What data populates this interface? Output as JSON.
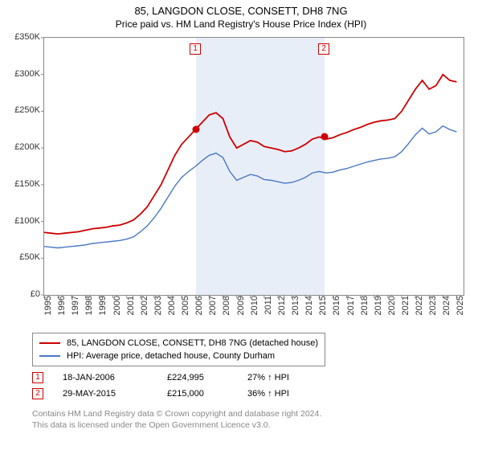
{
  "title": "85, LANGDON CLOSE, CONSETT, DH8 7NG",
  "subtitle": "Price paid vs. HM Land Registry's House Price Index (HPI)",
  "chart": {
    "type": "line",
    "background_color": "#ffffff",
    "shade_color": "#e8eef8",
    "border_color": "#888888",
    "x_years": [
      1995,
      1996,
      1997,
      1998,
      1999,
      2000,
      2001,
      2002,
      2003,
      2004,
      2005,
      2006,
      2007,
      2008,
      2009,
      2010,
      2011,
      2012,
      2013,
      2014,
      2015,
      2016,
      2017,
      2018,
      2019,
      2020,
      2021,
      2022,
      2023,
      2024,
      2025
    ],
    "x_range": [
      1995,
      2025.5
    ],
    "ylim": [
      0,
      350000
    ],
    "ytick_step": 50000,
    "ytick_labels": [
      "£0",
      "£50K",
      "£100K",
      "£150K",
      "£200K",
      "£250K",
      "£300K",
      "£350K"
    ],
    "series": [
      {
        "name": "85, LANGDON CLOSE, CONSETT, DH8 7NG (detached house)",
        "color": "#cc0000",
        "line_width": 1.8,
        "x": [
          1995,
          1995.5,
          1996,
          1996.5,
          1997,
          1997.5,
          1998,
          1998.5,
          1999,
          1999.5,
          2000,
          2000.5,
          2001,
          2001.5,
          2002,
          2002.5,
          2003,
          2003.5,
          2004,
          2004.5,
          2005,
          2005.5,
          2006,
          2006.5,
          2007,
          2007.5,
          2008,
          2008.5,
          2009,
          2009.5,
          2010,
          2010.5,
          2011,
          2011.5,
          2012,
          2012.5,
          2013,
          2013.5,
          2014,
          2014.5,
          2015,
          2015.5,
          2016,
          2016.5,
          2017,
          2017.5,
          2018,
          2018.5,
          2019,
          2019.5,
          2020,
          2020.5,
          2021,
          2021.5,
          2022,
          2022.5,
          2023,
          2023.5,
          2024,
          2024.5,
          2025
        ],
        "y": [
          85000,
          84000,
          83000,
          84000,
          85000,
          86000,
          88000,
          90000,
          91000,
          92000,
          94000,
          95000,
          98000,
          102000,
          110000,
          120000,
          135000,
          150000,
          170000,
          190000,
          205000,
          215000,
          224995,
          235000,
          245000,
          248000,
          240000,
          215000,
          200000,
          205000,
          210000,
          208000,
          202000,
          200000,
          198000,
          195000,
          196000,
          200000,
          205000,
          212000,
          215000,
          212000,
          214000,
          218000,
          221000,
          225000,
          228000,
          232000,
          235000,
          237000,
          238000,
          240000,
          250000,
          265000,
          280000,
          292000,
          280000,
          285000,
          300000,
          292000,
          290000
        ]
      },
      {
        "name": "HPI: Average price, detached house, County Durham",
        "color": "#4a78c4",
        "line_width": 1.4,
        "x": [
          1995,
          1995.5,
          1996,
          1996.5,
          1997,
          1997.5,
          1998,
          1998.5,
          1999,
          1999.5,
          2000,
          2000.5,
          2001,
          2001.5,
          2002,
          2002.5,
          2003,
          2003.5,
          2004,
          2004.5,
          2005,
          2005.5,
          2006,
          2006.5,
          2007,
          2007.5,
          2008,
          2008.5,
          2009,
          2009.5,
          2010,
          2010.5,
          2011,
          2011.5,
          2012,
          2012.5,
          2013,
          2013.5,
          2014,
          2014.5,
          2015,
          2015.5,
          2016,
          2016.5,
          2017,
          2017.5,
          2018,
          2018.5,
          2019,
          2019.5,
          2020,
          2020.5,
          2021,
          2021.5,
          2022,
          2022.5,
          2023,
          2023.5,
          2024,
          2024.5,
          2025
        ],
        "y": [
          66000,
          65000,
          64000,
          65000,
          66000,
          67000,
          68000,
          70000,
          71000,
          72000,
          73000,
          74000,
          76000,
          79000,
          86000,
          94000,
          105000,
          118000,
          133000,
          148000,
          160000,
          168000,
          175000,
          183000,
          190000,
          193000,
          187000,
          168000,
          156000,
          160000,
          164000,
          162000,
          157000,
          156000,
          154000,
          152000,
          153000,
          156000,
          160000,
          166000,
          168000,
          166000,
          167000,
          170000,
          172000,
          175000,
          178000,
          181000,
          183000,
          185000,
          186000,
          188000,
          195000,
          206000,
          218000,
          227000,
          219000,
          222000,
          230000,
          225000,
          222000
        ]
      }
    ],
    "sale_points": [
      {
        "label": "1",
        "x": 2006.05,
        "y": 224995
      },
      {
        "label": "2",
        "x": 2015.4,
        "y": 215000
      }
    ]
  },
  "legend": {
    "rows": [
      {
        "color": "#cc0000",
        "label": "85, LANGDON CLOSE, CONSETT, DH8 7NG (detached house)"
      },
      {
        "color": "#4a78c4",
        "label": "HPI: Average price, detached house, County Durham"
      }
    ]
  },
  "sales_table": {
    "rows": [
      {
        "num": "1",
        "date": "18-JAN-2006",
        "price": "£224,995",
        "delta": "27% ↑ HPI"
      },
      {
        "num": "2",
        "date": "29-MAY-2015",
        "price": "£215,000",
        "delta": "36% ↑ HPI"
      }
    ]
  },
  "footer": {
    "line1": "Contains HM Land Registry data © Crown copyright and database right 2024.",
    "line2": "This data is licensed under the Open Government Licence v3.0."
  }
}
